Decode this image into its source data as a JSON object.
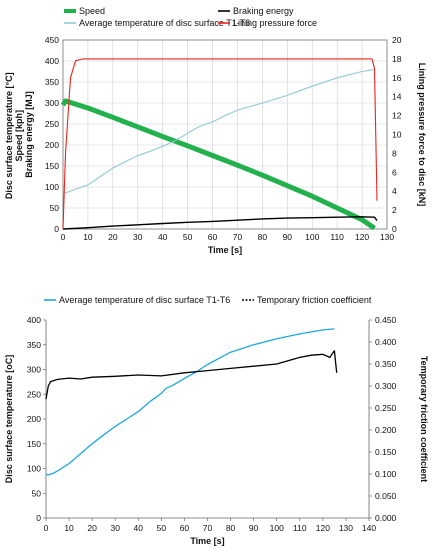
{
  "chart_data": [
    {
      "type": "line",
      "legend": [
        "Speed",
        "Braking energy",
        "Average temperature of disc surface  T1-T6",
        "Lining pressure force"
      ],
      "xlabel": "Time [s]",
      "ylabel_lines": [
        "Disc surface temperature [°C]",
        "Speed [kph]",
        "Braking energy [MJ]"
      ],
      "y2label": "Lining pressure force to disc [kN]",
      "xlim": [
        0,
        130
      ],
      "ylim": [
        0,
        450
      ],
      "y2lim": [
        0,
        20
      ],
      "xticks": [
        "0",
        "10",
        "20",
        "30",
        "40",
        "50",
        "60",
        "70",
        "80",
        "90",
        "100",
        "110",
        "120",
        "130"
      ],
      "yticks": [
        "0",
        "50",
        "100",
        "150",
        "200",
        "250",
        "300",
        "350",
        "400",
        "450"
      ],
      "y2ticks": [
        "0",
        "2",
        "4",
        "6",
        "8",
        "10",
        "12",
        "14",
        "16",
        "18",
        "20"
      ],
      "grid": true,
      "legend_position": "top",
      "colors": {
        "speed": "#22b14c",
        "energy": "#000000",
        "temperature": "#8ec9d6",
        "pressure": "#e8241a"
      },
      "series": [
        {
          "name": "Speed",
          "axis": "left",
          "x": [
            0,
            1,
            2,
            10,
            20,
            30,
            40,
            50,
            60,
            70,
            80,
            90,
            100,
            110,
            120,
            125
          ],
          "y": [
            295,
            305,
            303,
            288,
            266,
            243,
            220,
            198,
            175,
            152,
            128,
            103,
            78,
            50,
            22,
            2
          ]
        },
        {
          "name": "Braking energy",
          "axis": "left",
          "x": [
            0,
            10,
            20,
            30,
            40,
            50,
            60,
            70,
            80,
            90,
            100,
            110,
            120,
            125,
            126
          ],
          "y": [
            0,
            3,
            7,
            10,
            13,
            16,
            18,
            21,
            24,
            26,
            27,
            28,
            29,
            28,
            20
          ]
        },
        {
          "name": "Average temperature of disc surface  T1-T6",
          "axis": "left",
          "x": [
            0,
            2,
            5,
            10,
            15,
            20,
            25,
            30,
            35,
            40,
            45,
            50,
            55,
            60,
            65,
            70,
            80,
            90,
            100,
            110,
            120,
            125
          ],
          "y": [
            85,
            88,
            95,
            105,
            125,
            145,
            160,
            175,
            185,
            197,
            210,
            228,
            245,
            255,
            270,
            283,
            300,
            318,
            340,
            360,
            375,
            380
          ]
        },
        {
          "name": "Lining pressure force",
          "axis": "right",
          "x": [
            0,
            1,
            3,
            5,
            8,
            20,
            40,
            60,
            80,
            100,
            120,
            124,
            125,
            126
          ],
          "y": [
            0,
            8,
            16,
            17.8,
            18,
            18,
            18,
            18,
            18,
            18,
            18,
            18,
            17,
            3
          ]
        }
      ]
    },
    {
      "type": "line",
      "legend": [
        "Average temperature of disc surface T1-T6",
        "Temporary friction coefficient"
      ],
      "xlabel": "Time [s]",
      "ylabel": "Disc surface temperature [oC]",
      "y2label": "Temporary friction coefficient",
      "xlim": [
        0,
        140
      ],
      "ylim": [
        0,
        400
      ],
      "y2lim": [
        0,
        0.45
      ],
      "xticks": [
        "0",
        "10",
        "20",
        "30",
        "40",
        "50",
        "60",
        "70",
        "80",
        "90",
        "100",
        "110",
        "120",
        "130",
        "140"
      ],
      "yticks": [
        "0",
        "50",
        "100",
        "150",
        "200",
        "250",
        "300",
        "350",
        "400"
      ],
      "y2ticks": [
        "0.000",
        "0.050",
        "0.100",
        "0.150",
        "0.200",
        "0.250",
        "0.300",
        "0.350",
        "0.400",
        "0.450"
      ],
      "grid": false,
      "legend_position": "top",
      "colors": {
        "temperature": "#1ea7e1",
        "friction": "#000000"
      },
      "series": [
        {
          "name": "Average temperature of disc surface T1-T6",
          "axis": "left",
          "x": [
            0,
            1,
            3,
            5,
            10,
            15,
            20,
            25,
            30,
            35,
            40,
            45,
            50,
            52,
            55,
            60,
            65,
            70,
            80,
            90,
            100,
            110,
            120,
            125
          ],
          "y": [
            88,
            87,
            90,
            95,
            110,
            130,
            150,
            168,
            185,
            200,
            215,
            235,
            252,
            262,
            268,
            282,
            295,
            310,
            335,
            350,
            362,
            372,
            380,
            382
          ]
        },
        {
          "name": "Temporary friction coefficient",
          "axis": "right",
          "x": [
            0,
            1,
            2,
            5,
            10,
            15,
            20,
            30,
            40,
            50,
            60,
            70,
            80,
            90,
            100,
            110,
            115,
            120,
            123,
            125,
            126
          ],
          "y": [
            0.27,
            0.3,
            0.31,
            0.315,
            0.318,
            0.316,
            0.32,
            0.322,
            0.325,
            0.323,
            0.33,
            0.335,
            0.34,
            0.345,
            0.35,
            0.365,
            0.37,
            0.372,
            0.365,
            0.38,
            0.33
          ]
        }
      ]
    }
  ]
}
